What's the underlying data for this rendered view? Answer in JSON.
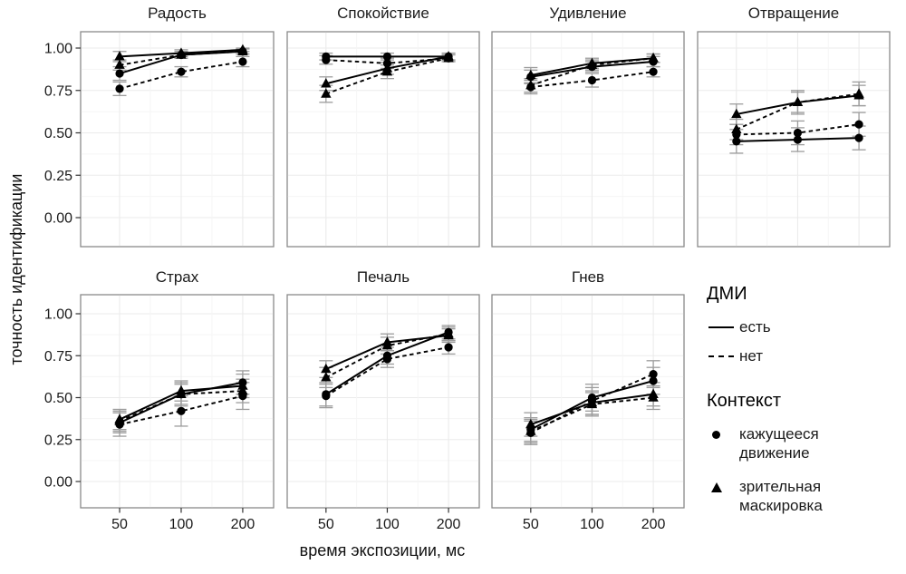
{
  "chart_data": {
    "type": "line",
    "title": "",
    "xlabel": "время экспозиции, мс",
    "ylabel": "точность идентификации",
    "x": [
      50,
      100,
      200
    ],
    "xticks": [
      {
        "label": "50"
      },
      {
        "label": "100"
      },
      {
        "label": "200"
      }
    ],
    "yticks": [
      {
        "label": "0.00",
        "value": 0
      },
      {
        "label": "0.25",
        "value": 0.25
      },
      {
        "label": "0.50",
        "value": 0.5
      },
      {
        "label": "0.75",
        "value": 0.75
      },
      {
        "label": "1.00",
        "value": 1
      }
    ],
    "ylim": [
      0,
      1
    ],
    "grid": true,
    "legend_position": "right",
    "style": {
      "point_color": "#000000",
      "errorbar_color": "#9c9c9c",
      "panel_border": "#8a8a8a",
      "grid_major": "#ebebeb",
      "grid_minor": "#f5f5f5",
      "tick_color": "#333333",
      "text_color": "#1a1a1a"
    },
    "legend": {
      "linetype_title": "ДМИ",
      "linetype_items": [
        {
          "label": "есть",
          "style": "solid"
        },
        {
          "label": "нет",
          "style": "dashed"
        }
      ],
      "shape_title": "Контекст",
      "shape_items": [
        {
          "label": "кажущееся движение",
          "shape": "circle"
        },
        {
          "label": "зрительная маскировка",
          "shape": "triangle"
        }
      ]
    },
    "series_defs": [
      {
        "id": "circle_solid",
        "context": "кажущееся движение",
        "dmi": "есть",
        "shape": "circle",
        "line": "solid"
      },
      {
        "id": "circle_dashed",
        "context": "кажущееся движение",
        "dmi": "нет",
        "shape": "circle",
        "line": "dashed"
      },
      {
        "id": "tri_solid",
        "context": "зрительная маскировка",
        "dmi": "есть",
        "shape": "triangle",
        "line": "solid"
      },
      {
        "id": "tri_dashed",
        "context": "зрительная маскировка",
        "dmi": "нет",
        "shape": "triangle",
        "line": "dashed"
      }
    ],
    "panels": [
      {
        "title": "Радость",
        "row": 0,
        "col": 0,
        "series": [
          {
            "def": "circle_solid",
            "values": [
              0.85,
              0.96,
              0.98
            ],
            "err": [
              0.04,
              0.02,
              0.015
            ]
          },
          {
            "def": "circle_dashed",
            "values": [
              0.76,
              0.86,
              0.92
            ],
            "err": [
              0.04,
              0.03,
              0.03
            ]
          },
          {
            "def": "tri_solid",
            "values": [
              0.95,
              0.97,
              0.99
            ],
            "err": [
              0.03,
              0.02,
              0.01
            ]
          },
          {
            "def": "tri_dashed",
            "values": [
              0.9,
              0.96,
              0.98
            ],
            "err": [
              0.03,
              0.02,
              0.015
            ]
          }
        ]
      },
      {
        "title": "Спокойствие",
        "row": 0,
        "col": 1,
        "series": [
          {
            "def": "circle_solid",
            "values": [
              0.95,
              0.95,
              0.95
            ],
            "err": [
              0.02,
              0.02,
              0.02
            ]
          },
          {
            "def": "circle_dashed",
            "values": [
              0.93,
              0.91,
              0.94
            ],
            "err": [
              0.025,
              0.03,
              0.02
            ]
          },
          {
            "def": "tri_solid",
            "values": [
              0.79,
              0.88,
              0.95
            ],
            "err": [
              0.04,
              0.035,
              0.02
            ]
          },
          {
            "def": "tri_dashed",
            "values": [
              0.73,
              0.86,
              0.94
            ],
            "err": [
              0.05,
              0.04,
              0.02
            ]
          }
        ]
      },
      {
        "title": "Удивление",
        "row": 0,
        "col": 2,
        "series": [
          {
            "def": "circle_solid",
            "values": [
              0.83,
              0.89,
              0.92
            ],
            "err": [
              0.04,
              0.03,
              0.03
            ]
          },
          {
            "def": "circle_dashed",
            "values": [
              0.77,
              0.81,
              0.86
            ],
            "err": [
              0.04,
              0.04,
              0.03
            ]
          },
          {
            "def": "tri_solid",
            "values": [
              0.84,
              0.91,
              0.94
            ],
            "err": [
              0.045,
              0.03,
              0.025
            ]
          },
          {
            "def": "tri_dashed",
            "values": [
              0.78,
              0.9,
              0.94
            ],
            "err": [
              0.04,
              0.03,
              0.025
            ]
          }
        ]
      },
      {
        "title": "Отвращение",
        "row": 0,
        "col": 3,
        "series": [
          {
            "def": "circle_solid",
            "values": [
              0.45,
              0.46,
              0.47
            ],
            "err": [
              0.07,
              0.07,
              0.07
            ]
          },
          {
            "def": "circle_dashed",
            "values": [
              0.49,
              0.5,
              0.55
            ],
            "err": [
              0.06,
              0.07,
              0.07
            ]
          },
          {
            "def": "tri_solid",
            "values": [
              0.61,
              0.68,
              0.72
            ],
            "err": [
              0.06,
              0.06,
              0.06
            ]
          },
          {
            "def": "tri_dashed",
            "values": [
              0.52,
              0.68,
              0.73
            ],
            "err": [
              0.06,
              0.07,
              0.07
            ]
          }
        ]
      },
      {
        "title": "Страх",
        "row": 1,
        "col": 0,
        "series": [
          {
            "def": "circle_solid",
            "values": [
              0.35,
              0.52,
              0.59
            ],
            "err": [
              0.06,
              0.07,
              0.07
            ]
          },
          {
            "def": "circle_dashed",
            "values": [
              0.34,
              0.42,
              0.51
            ],
            "err": [
              0.07,
              0.09,
              0.08
            ]
          },
          {
            "def": "tri_solid",
            "values": [
              0.37,
              0.54,
              0.57
            ],
            "err": [
              0.06,
              0.06,
              0.07
            ]
          },
          {
            "def": "tri_dashed",
            "values": [
              0.36,
              0.52,
              0.54
            ],
            "err": [
              0.06,
              0.06,
              0.07
            ]
          }
        ]
      },
      {
        "title": "Печаль",
        "row": 1,
        "col": 1,
        "series": [
          {
            "def": "circle_solid",
            "values": [
              0.52,
              0.75,
              0.89
            ],
            "err": [
              0.07,
              0.05,
              0.04
            ]
          },
          {
            "def": "circle_dashed",
            "values": [
              0.51,
              0.73,
              0.8
            ],
            "err": [
              0.07,
              0.05,
              0.04
            ]
          },
          {
            "def": "tri_solid",
            "values": [
              0.67,
              0.83,
              0.87
            ],
            "err": [
              0.05,
              0.05,
              0.04
            ]
          },
          {
            "def": "tri_dashed",
            "values": [
              0.62,
              0.81,
              0.88
            ],
            "err": [
              0.06,
              0.05,
              0.04
            ]
          }
        ]
      },
      {
        "title": "Гнев",
        "row": 1,
        "col": 2,
        "series": [
          {
            "def": "circle_solid",
            "values": [
              0.31,
              0.5,
              0.6
            ],
            "err": [
              0.07,
              0.08,
              0.08
            ]
          },
          {
            "def": "circle_dashed",
            "values": [
              0.29,
              0.48,
              0.64
            ],
            "err": [
              0.07,
              0.08,
              0.08
            ]
          },
          {
            "def": "tri_solid",
            "values": [
              0.34,
              0.47,
              0.52
            ],
            "err": [
              0.07,
              0.07,
              0.07
            ]
          },
          {
            "def": "tri_dashed",
            "values": [
              0.3,
              0.46,
              0.5
            ],
            "err": [
              0.07,
              0.07,
              0.07
            ]
          }
        ]
      }
    ]
  }
}
